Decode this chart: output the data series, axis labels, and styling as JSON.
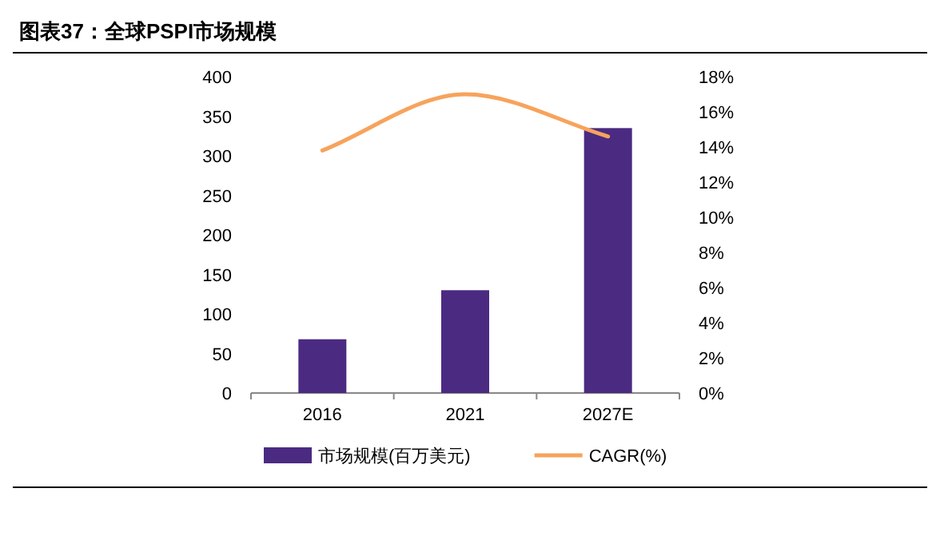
{
  "chart_data": {
    "type": "bar",
    "title": "图表37：全球PSPI市场规模",
    "categories": [
      "2016",
      "2021",
      "2027E"
    ],
    "series": [
      {
        "name": "市场规模(百万美元)",
        "color": "#4b2a82",
        "values": [
          68,
          130,
          335
        ]
      },
      {
        "name": "CAGR(%)",
        "type": "line",
        "axis": "y2",
        "color": "#f7a35c",
        "values": [
          13.8,
          17.0,
          14.6
        ]
      }
    ],
    "ylim": [
      0,
      400
    ],
    "yticks": [
      0,
      50,
      100,
      150,
      200,
      250,
      300,
      350,
      400
    ],
    "y2lim": [
      0,
      18
    ],
    "y2ticks": [
      {
        "value": 0,
        "label": "0%"
      },
      {
        "value": 2,
        "label": "2%"
      },
      {
        "value": 4,
        "label": "4%"
      },
      {
        "value": 6,
        "label": "6%"
      },
      {
        "value": 8,
        "label": "8%"
      },
      {
        "value": 10,
        "label": "10%"
      },
      {
        "value": 12,
        "label": "12%"
      },
      {
        "value": 14,
        "label": "14%"
      },
      {
        "value": 16,
        "label": "16%"
      },
      {
        "value": 18,
        "label": "18%"
      }
    ],
    "legend": "bottom",
    "grid": false
  }
}
